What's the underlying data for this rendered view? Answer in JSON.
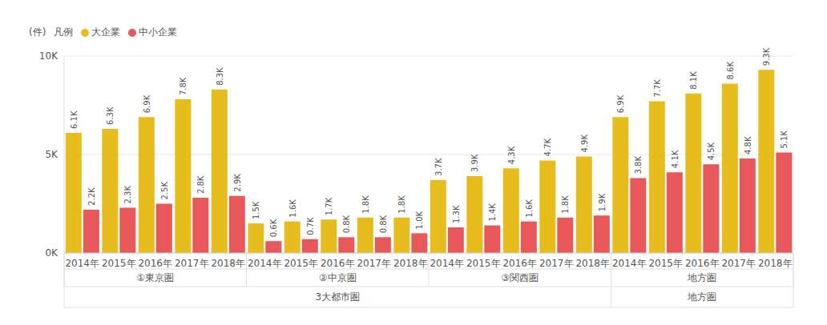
{
  "chart_data": {
    "type": "bar",
    "y_label": "(件)",
    "legend_title": "凡例",
    "legend": "top-left",
    "grid": true,
    "data_labels": true,
    "categories": [
      "2014年",
      "2015年",
      "2016年",
      "2017年",
      "2018年",
      "2014年",
      "2015年",
      "2016年",
      "2017年",
      "2018年",
      "2014年",
      "2015年",
      "2016年",
      "2017年",
      "2018年",
      "2014年",
      "2015年",
      "2016年",
      "2017年",
      "2018年"
    ],
    "category_groups": [
      [
        {
          "label": "①東京圏",
          "span": 5
        },
        {
          "label": "②中京圏",
          "span": 5
        },
        {
          "label": "③関西圏",
          "span": 5
        },
        {
          "label": "地方圏",
          "span": 5
        }
      ],
      [
        {
          "label": "3大都市圏",
          "span": 15
        },
        {
          "label": "地方圏",
          "span": 5
        }
      ]
    ],
    "series": [
      {
        "name": "大企業",
        "color": "#e6bd1c",
        "values": [
          6100,
          6300,
          6900,
          7800,
          8300,
          1500,
          1600,
          1700,
          1800,
          1800,
          3700,
          3900,
          4300,
          4700,
          4900,
          6900,
          7700,
          8100,
          8600,
          9300
        ],
        "value_labels": [
          "6.1K",
          "6.3K",
          "6.9K",
          "7.8K",
          "8.3K",
          "1.5K",
          "1.6K",
          "1.7K",
          "1.8K",
          "1.8K",
          "3.7K",
          "3.9K",
          "4.3K",
          "4.7K",
          "4.9K",
          "6.9K",
          "7.7K",
          "8.1K",
          "8.6K",
          "9.3K"
        ]
      },
      {
        "name": "中小企業",
        "color": "#e85759",
        "values": [
          2200,
          2300,
          2500,
          2800,
          2900,
          600,
          700,
          800,
          800,
          1000,
          1300,
          1400,
          1600,
          1800,
          1900,
          3800,
          4100,
          4500,
          4800,
          5100
        ],
        "value_labels": [
          "2.2K",
          "2.3K",
          "2.5K",
          "2.8K",
          "2.9K",
          "0.6K",
          "0.7K",
          "0.8K",
          "0.8K",
          "1.0K",
          "1.3K",
          "1.4K",
          "1.6K",
          "1.8K",
          "1.9K",
          "3.8K",
          "4.1K",
          "4.5K",
          "4.8K",
          "5.1K"
        ]
      }
    ],
    "ylim": [
      0,
      10000
    ],
    "yticks": [
      {
        "value": 0,
        "label": "0K"
      },
      {
        "value": 5000,
        "label": "5K"
      },
      {
        "value": 10000,
        "label": "10K"
      }
    ]
  }
}
